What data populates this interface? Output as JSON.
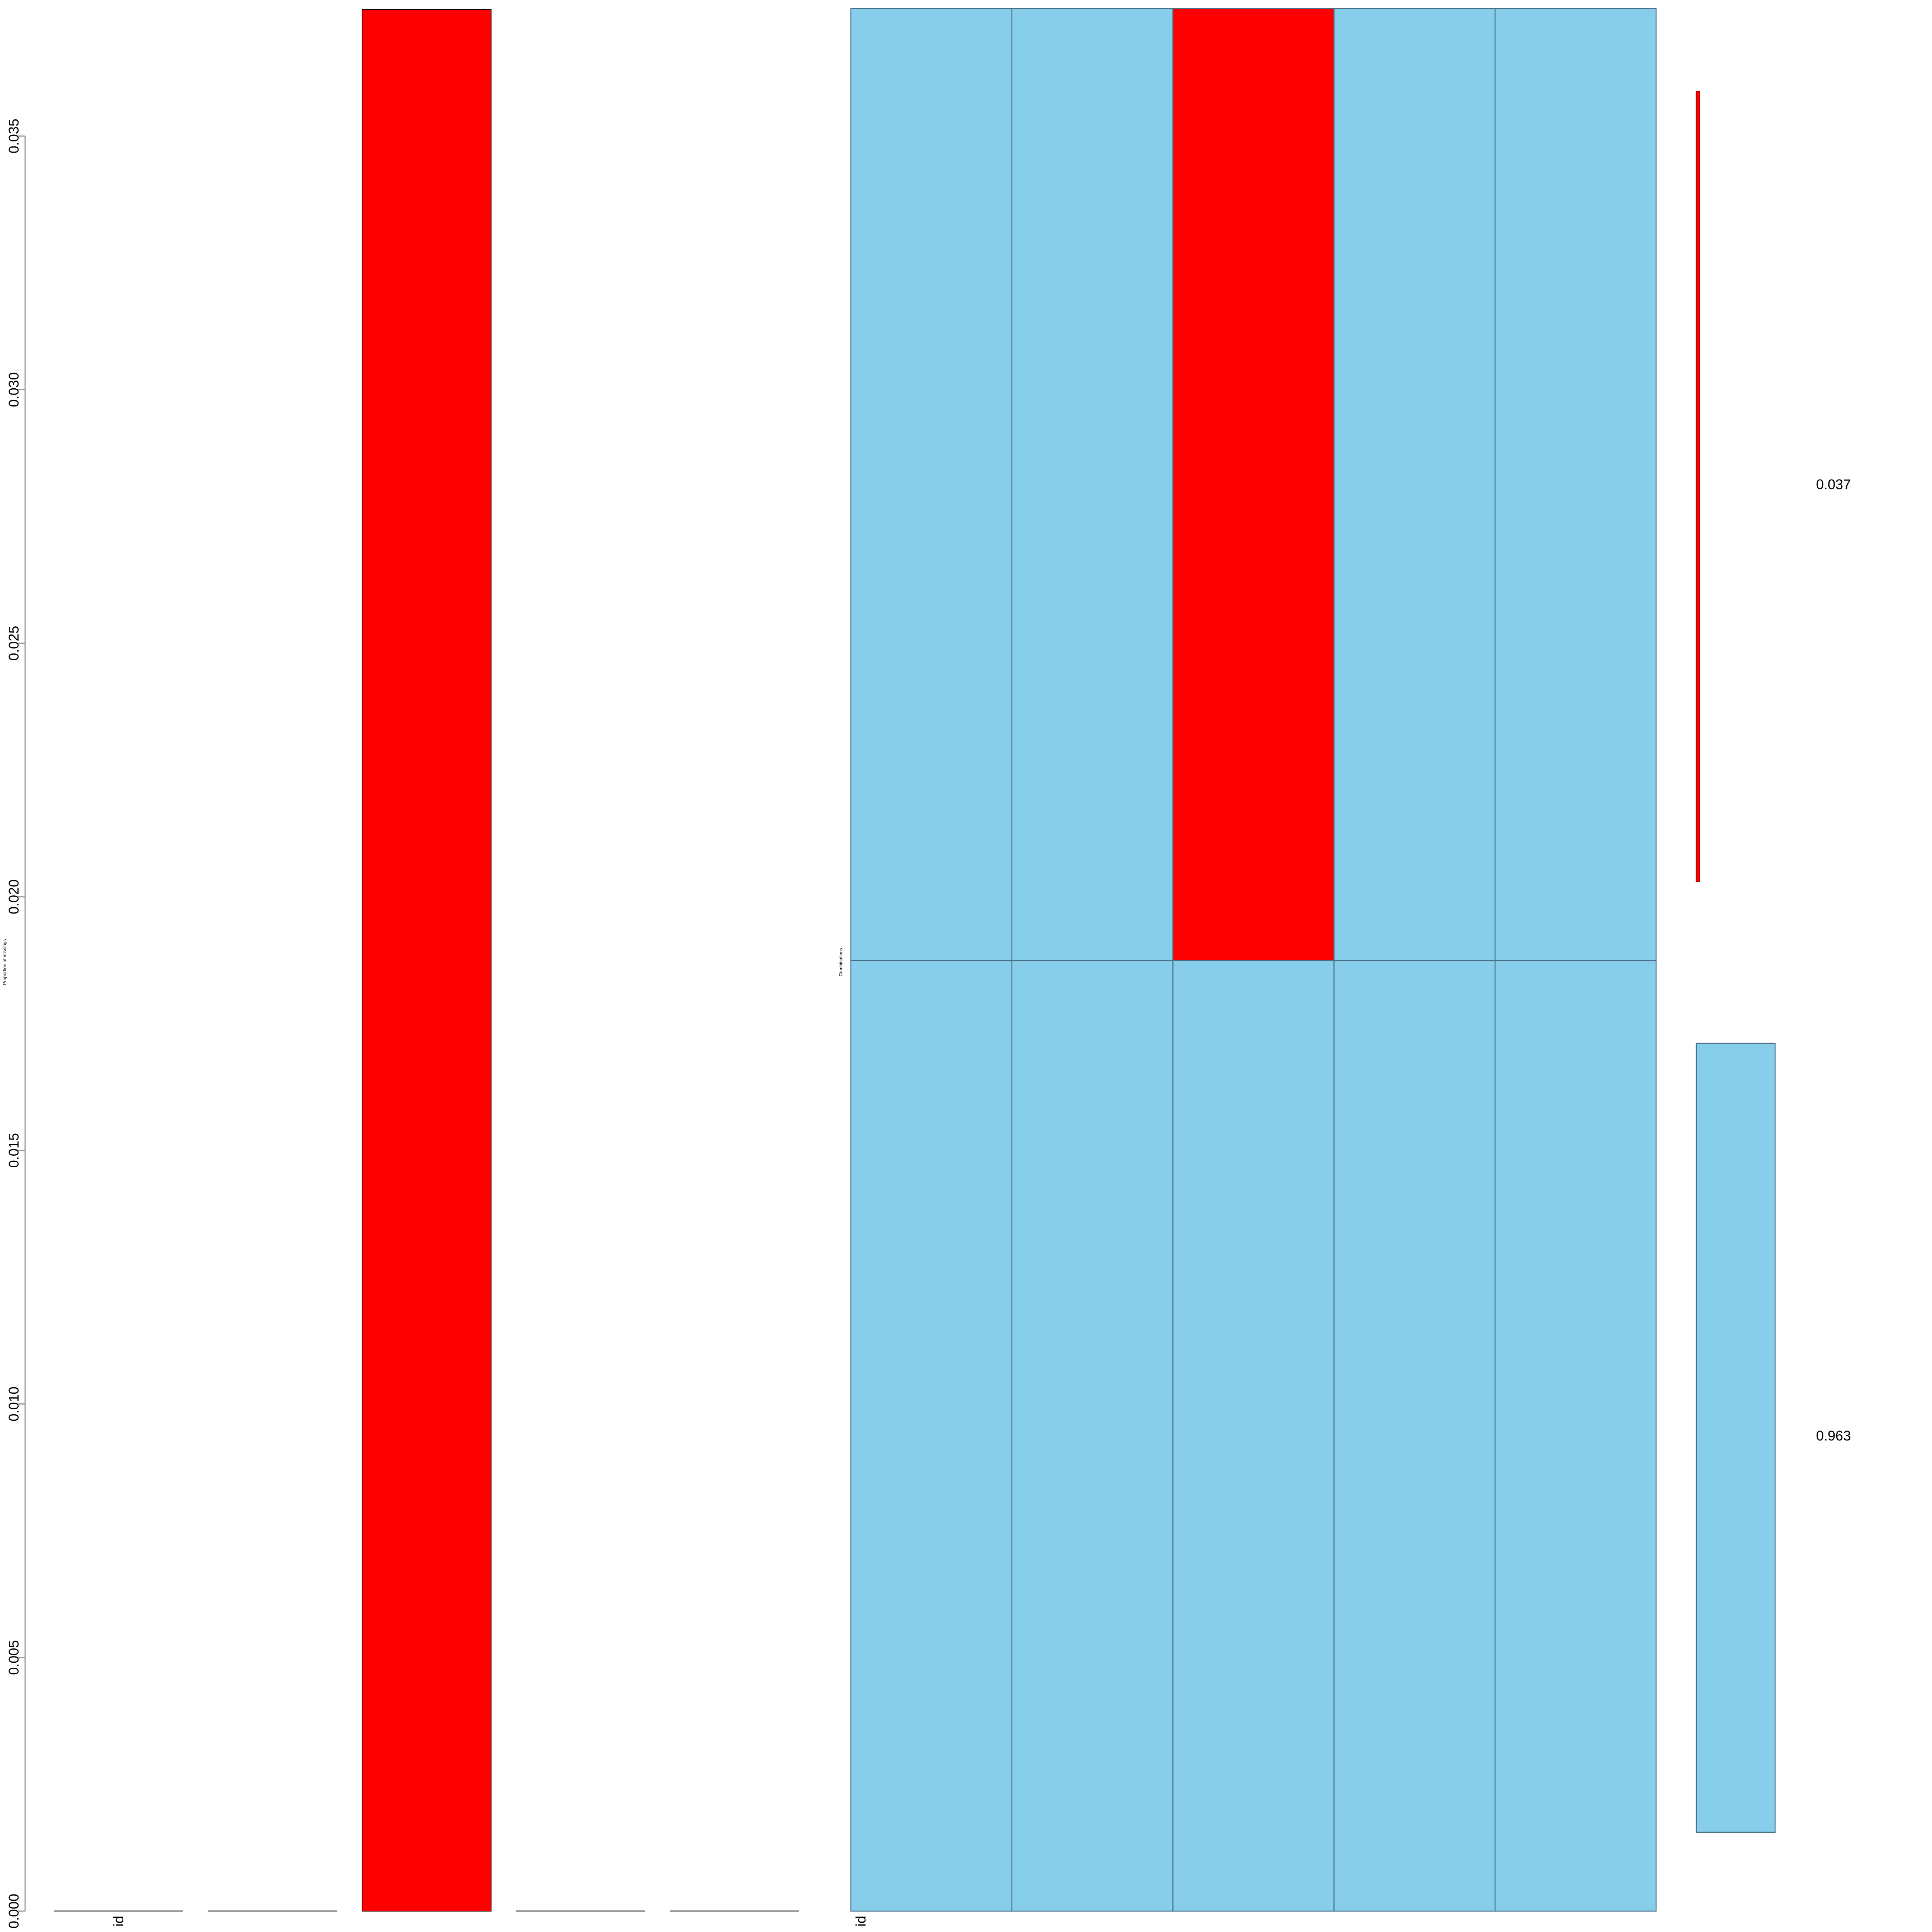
{
  "colors": {
    "missing": "#FF0000",
    "observed": "#87CEEB",
    "cell_border": "#4A6F86",
    "axis": "#999999"
  },
  "chart_data": [
    {
      "type": "bar",
      "title": "",
      "xlabel": "",
      "ylabel": "Proportion of missings",
      "categories": [
        "id",
        "",
        "",
        "",
        ""
      ],
      "values": [
        0,
        0,
        0.0375,
        0,
        0
      ],
      "ylim": [
        0,
        0.0375
      ],
      "yticks": [
        "0.000",
        "0.005",
        "0.010",
        "0.015",
        "0.020",
        "0.025",
        "0.030",
        "0.035"
      ],
      "grid": false
    },
    {
      "type": "heatmap",
      "title": "",
      "xlabel": "",
      "ylabel": "Combinations",
      "columns": [
        "id",
        "",
        "",
        "",
        ""
      ],
      "rows": [
        {
          "pattern": [
            "observed",
            "observed",
            "missing",
            "observed",
            "observed"
          ],
          "proportion": 0.037
        },
        {
          "pattern": [
            "observed",
            "observed",
            "observed",
            "observed",
            "observed"
          ],
          "proportion": 0.963
        }
      ],
      "proportion_labels": [
        "0.037",
        "0.963"
      ],
      "grid": false
    }
  ]
}
